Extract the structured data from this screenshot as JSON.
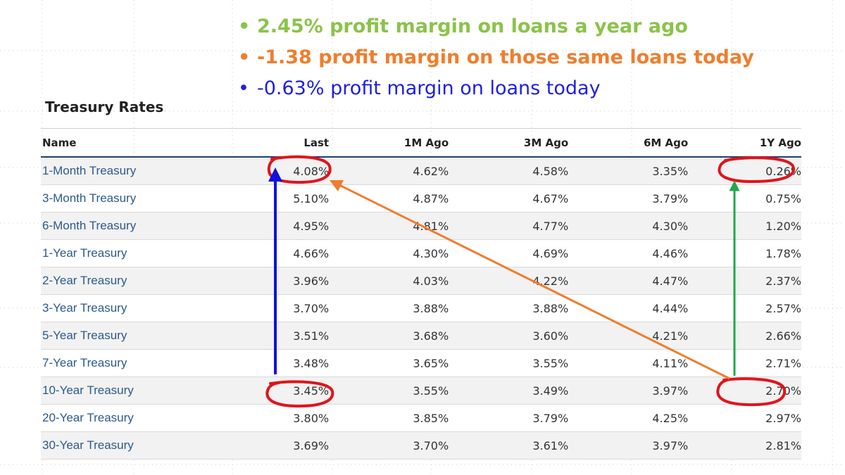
{
  "bullets": [
    {
      "text": "2.45% profit margin on loans a year ago",
      "color": "#8bc34a"
    },
    {
      "text": "-1.38 profit margin on those same loans today",
      "color": "#ef7e2d"
    },
    {
      "text": "-0.63% profit margin on loans today",
      "color": "#1e1ee6"
    }
  ],
  "bullet_glyph": "•",
  "section_title": "Treasury Rates",
  "table": {
    "headers": [
      "Name",
      "Last",
      "1M Ago",
      "3M Ago",
      "6M Ago",
      "1Y Ago"
    ],
    "rows": [
      [
        "1-Month Treasury",
        "4.08%",
        "4.62%",
        "4.58%",
        "3.35%",
        "0.26%"
      ],
      [
        "3-Month Treasury",
        "5.10%",
        "4.87%",
        "4.67%",
        "3.79%",
        "0.75%"
      ],
      [
        "6-Month Treasury",
        "4.95%",
        "4.81%",
        "4.77%",
        "4.30%",
        "1.20%"
      ],
      [
        "1-Year Treasury",
        "4.66%",
        "4.30%",
        "4.69%",
        "4.46%",
        "1.78%"
      ],
      [
        "2-Year Treasury",
        "3.96%",
        "4.03%",
        "4.22%",
        "4.47%",
        "2.37%"
      ],
      [
        "3-Year Treasury",
        "3.70%",
        "3.88%",
        "3.88%",
        "4.44%",
        "2.57%"
      ],
      [
        "5-Year Treasury",
        "3.51%",
        "3.68%",
        "3.60%",
        "4.21%",
        "2.66%"
      ],
      [
        "7-Year Treasury",
        "3.48%",
        "3.65%",
        "3.55%",
        "4.11%",
        "2.71%"
      ],
      [
        "10-Year Treasury",
        "3.45%",
        "3.55%",
        "3.49%",
        "3.97%",
        "2.70%"
      ],
      [
        "20-Year Treasury",
        "3.80%",
        "3.85%",
        "3.79%",
        "4.25%",
        "2.97%"
      ],
      [
        "30-Year Treasury",
        "3.69%",
        "3.70%",
        "3.61%",
        "3.97%",
        "2.81%"
      ]
    ]
  },
  "colors": {
    "circle_red": "#e0141c",
    "arrow_blue": "#1010e0",
    "arrow_orange": "#ef7e2d",
    "arrow_green": "#22a84a",
    "link_blue": "#2b5a8a",
    "header_rule": "#1f3f6b"
  }
}
